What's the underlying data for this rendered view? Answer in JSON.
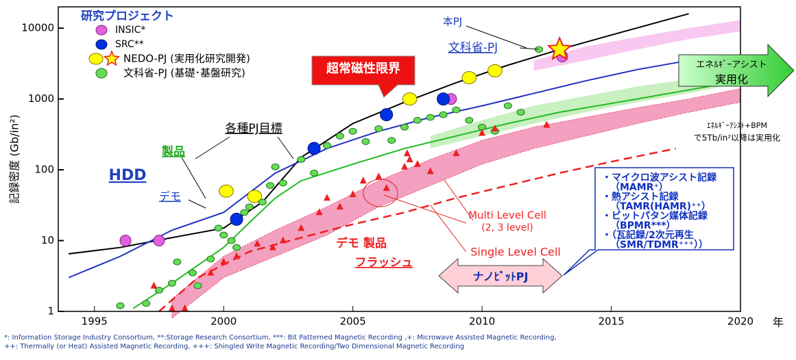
{
  "chart_data": {
    "type": "scatter",
    "log_y": true,
    "xlim": [
      1993.6,
      2020
    ],
    "ylim": [
      1,
      20000
    ],
    "xticks": [
      1995,
      2000,
      2005,
      2010,
      2015,
      2020
    ],
    "yticks": [
      1,
      10,
      100,
      1000,
      10000
    ],
    "x_label": "年",
    "y_label": "記録密度 (Gb/in²)",
    "legend_title": "研究プロジェクト",
    "series": [
      {
        "name": "INSIC*",
        "color": "#e060e0",
        "x": [
          1996.2,
          1997.5,
          2008.8,
          2013.1
        ],
        "values": [
          10,
          10,
          1000,
          4000
        ]
      },
      {
        "name": "SRC**",
        "color": "#0030e0",
        "x": [
          2000.5,
          2003.5,
          2006.3,
          2008.5
        ],
        "values": [
          20,
          200,
          600,
          1000
        ]
      },
      {
        "name": "NEDO-PJ (実用化研究開発)",
        "color": "#ffff00",
        "x": [
          2000.1,
          2001.2,
          2007.2,
          2009.5,
          2010.5,
          2013
        ],
        "values": [
          50,
          42,
          1000,
          2000,
          2500,
          5000
        ],
        "markers": [
          "circle",
          "circle",
          "circle",
          "circle",
          "circle",
          "star"
        ]
      },
      {
        "name": "文科省-PJ (基礎･基盤研究)",
        "color": "#66dd55",
        "x": [
          1996,
          1997,
          1997.5,
          1998,
          1998.2,
          1998.8,
          1999,
          1999.5,
          1999.8,
          2000,
          2000.3,
          2000.5,
          2000.8,
          2001,
          2001.5,
          2001.8,
          2002,
          2002.3,
          2003,
          2003.5,
          2004,
          2004.5,
          2005,
          2005.5,
          2006,
          2006.5,
          2007,
          2007.5,
          2008,
          2008.5,
          2009,
          2009.5,
          2010,
          2010.5,
          2011,
          2011.5,
          2012.2
        ],
        "values": [
          1.2,
          1.3,
          2,
          2.5,
          5,
          3.5,
          2.3,
          5.5,
          15,
          12,
          10,
          8,
          25,
          30,
          35,
          60,
          110,
          65,
          140,
          90,
          220,
          300,
          350,
          250,
          380,
          260,
          400,
          500,
          550,
          600,
          700,
          500,
          400,
          350,
          800,
          650,
          5000
        ]
      }
    ],
    "flash_points": {
      "color": "#ee2020",
      "x": [
        1997.3,
        1998,
        1998.5,
        1999.5,
        2000,
        2000.5,
        2001.3,
        2001.9,
        2002.3,
        2003,
        2003.7,
        2004,
        2004.5,
        2005,
        2005.4,
        2006,
        2006.3,
        2007,
        2007.1,
        2007.2,
        2007.5,
        2008,
        2009,
        2010,
        2010.5,
        2012.5
      ],
      "values": [
        2.3,
        1.1,
        1.1,
        3.5,
        5,
        6,
        9,
        8,
        10,
        15,
        25,
        40,
        30,
        45,
        70,
        80,
        55,
        110,
        170,
        140,
        120,
        95,
        170,
        330,
        380,
        430
      ]
    },
    "lines": [
      {
        "name": "各種PJ目標",
        "color": "#000000",
        "x": [
          1994,
          1996,
          1998,
          2000,
          2001.5,
          2003,
          2005,
          2007,
          2009,
          2011,
          2013,
          2015,
          2018
        ],
        "values": [
          6.5,
          8,
          11,
          15,
          35,
          150,
          450,
          900,
          1700,
          3000,
          5000,
          8000,
          16000
        ]
      },
      {
        "name": "デモ",
        "color": "#2030c0",
        "x": [
          1994,
          1996,
          1998,
          2000,
          2002,
          2004,
          2006,
          2008,
          2010,
          2012,
          2014,
          2016,
          2018
        ],
        "values": [
          3,
          6,
          14,
          25,
          90,
          200,
          350,
          550,
          800,
          1200,
          1800,
          2600,
          3500
        ]
      },
      {
        "name": "製品",
        "color": "#22bb22",
        "x": [
          1996.5,
          1998,
          2000,
          2001,
          2002,
          2003,
          2005,
          2007,
          2009,
          2011,
          2013,
          2016,
          2020
        ],
        "values": [
          1.1,
          2.5,
          8,
          18,
          40,
          70,
          120,
          200,
          300,
          450,
          650,
          1000,
          1800
        ]
      },
      {
        "name": "Single Level Cell",
        "color": "#ee2020",
        "dashed": true,
        "x": [
          1997.5,
          1999,
          2001,
          2003,
          2005,
          2007,
          2009,
          2011,
          2013,
          2015,
          2017.5
        ],
        "values": [
          1,
          3,
          7,
          11,
          17,
          25,
          40,
          60,
          90,
          130,
          200
        ]
      }
    ],
    "bands": [
      {
        "color": "#f4a0c0",
        "x": [
          1998,
          2000,
          2002,
          2004,
          2006,
          2008,
          2010,
          2012,
          2014,
          2016,
          2018,
          2020
        ],
        "low": [
          0.8,
          3,
          6,
          12,
          30,
          60,
          120,
          200,
          300,
          450,
          650,
          900
        ],
        "high": [
          1.5,
          6,
          14,
          30,
          70,
          140,
          260,
          400,
          550,
          750,
          1000,
          1400
        ]
      },
      {
        "color": "#c8f0c0",
        "x": [
          2008,
          2010,
          2012,
          2014,
          2016,
          2018,
          2020
        ],
        "low": [
          200,
          300,
          450,
          650,
          900,
          1200,
          1700
        ],
        "high": [
          300,
          500,
          800,
          1100,
          1500,
          1900,
          2400
        ]
      },
      {
        "color": "#f8c8f0",
        "x": [
          2012,
          2014,
          2016,
          2018,
          2020
        ],
        "low": [
          2500,
          3500,
          5000,
          7000,
          9000
        ],
        "high": [
          3500,
          5500,
          7500,
          10000,
          13000
        ]
      }
    ],
    "annotations": [
      "本PJ",
      "文科省-PJ",
      "超常磁性限界",
      "エネﾙｷﾞｰアシスト",
      "実用化",
      "各種PJ目標",
      "製品",
      "HDD",
      "デモ",
      "ｴﾈﾙｷﾞｰｱｼｽﾄ+BPM",
      "で5Tb/in²以降は実用化",
      "Multi Level Cell",
      "(2, 3 level)",
      "Single Level Cell",
      "デモ  製品",
      "フラッシュ",
      "ナノﾋﾞｯﾄPJ",
      "・マイクロ波アシスト記録",
      "（MAMR⁺）",
      "・熱アシスト記録",
      "（TAMR(HAMR)⁺⁺）",
      "・ビットパタン媒体記録",
      "（BPMR***）",
      "・（瓦記録/2次元再生",
      "（SMR/TDMR⁺⁺⁺））"
    ],
    "footnotes": [
      "*: Information Storage Industry Consortium, **:Storage Research Consortium, ***: Bit Patterned Magnetic Recording ,+: Microwave Assisted Magnetic Recording,",
      "++: Thermally (or Heat) Assisted Magnetic Recording, +++: Shingled Write Magnetic Recording/Two Dimensional Magnetic Recording"
    ]
  }
}
